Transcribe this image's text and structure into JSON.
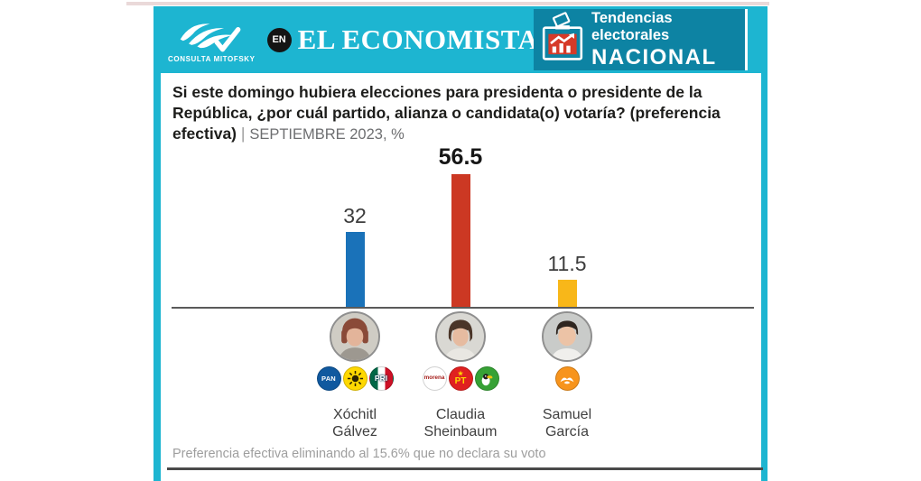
{
  "header": {
    "logo_caption": "CONSULTA MITOFSKY",
    "en_badge": "EN",
    "publication": "EL ECONOMISTA",
    "tag_line1": "Tendencias electorales",
    "tag_line2": "NACIONAL"
  },
  "question": {
    "bold_text": "Si este domingo hubiera elecciones para presidenta o presidente de la República, ¿por cuál partido, alianza o candidata(o) votaría? (preferencia efectiva)",
    "separator": "|",
    "period": "SEPTIEMBRE 2023, %"
  },
  "chart_data": {
    "type": "bar",
    "title": "Si este domingo hubiera elecciones para presidenta o presidente de la República, ¿por cuál partido, alianza o candidata(o) votaría? (preferencia efectiva)",
    "subtitle": "SEPTIEMBRE 2023, %",
    "categories": [
      "Xóchitl Gálvez",
      "Claudia Sheinbaum",
      "Samuel García"
    ],
    "values": [
      32,
      56.5,
      11.5
    ],
    "value_labels": [
      "32",
      "56.5",
      "11.5"
    ],
    "bar_colors": [
      "#1a72b9",
      "#cc3823",
      "#f8b719"
    ],
    "highlight_index": 1,
    "unit": "%",
    "ylim": [
      0,
      60
    ],
    "grid": false,
    "legend": null,
    "note": "Preferencia efectiva eliminando al 15.6% que no declara su voto"
  },
  "candidates": [
    {
      "first": "Xóchitl",
      "last": "Gálvez",
      "party_icons": [
        "pan-logo",
        "prd-sun-logo",
        "pri-logo"
      ]
    },
    {
      "first": "Claudia",
      "last": "Sheinbaum",
      "party_icons": [
        "morena-logo",
        "pt-logo",
        "pvem-toucan-logo"
      ]
    },
    {
      "first": "Samuel",
      "last": "García",
      "party_icons": [
        "mc-eagle-logo"
      ]
    }
  ],
  "parties": {
    "pan": {
      "label": "PAN",
      "color": "#10599f",
      "text_color": "#ffffff"
    },
    "prd": {
      "label": "",
      "color": "#ffd800"
    },
    "pri": {
      "label": "PRI",
      "colors": [
        "#006847",
        "#ffffff",
        "#ce1126"
      ]
    },
    "morena": {
      "label": "morena",
      "color": "#ffffff",
      "text_color": "#a6201c"
    },
    "pt": {
      "label": "PT",
      "color": "#e02020",
      "text_color": "#ffd500"
    },
    "pvem": {
      "label": "",
      "color": "#36a135"
    },
    "mc": {
      "label": "",
      "color": "#f7941d"
    }
  },
  "footer": {
    "note": "Preferencia efectiva eliminando al 15.6% que no declara su voto"
  },
  "colors": {
    "frame_cyan": "#1db5d1",
    "tag_teal": "#0d83a3",
    "bar_blue": "#1a72b9",
    "bar_red": "#cc3823",
    "bar_yellow": "#f8b719"
  }
}
